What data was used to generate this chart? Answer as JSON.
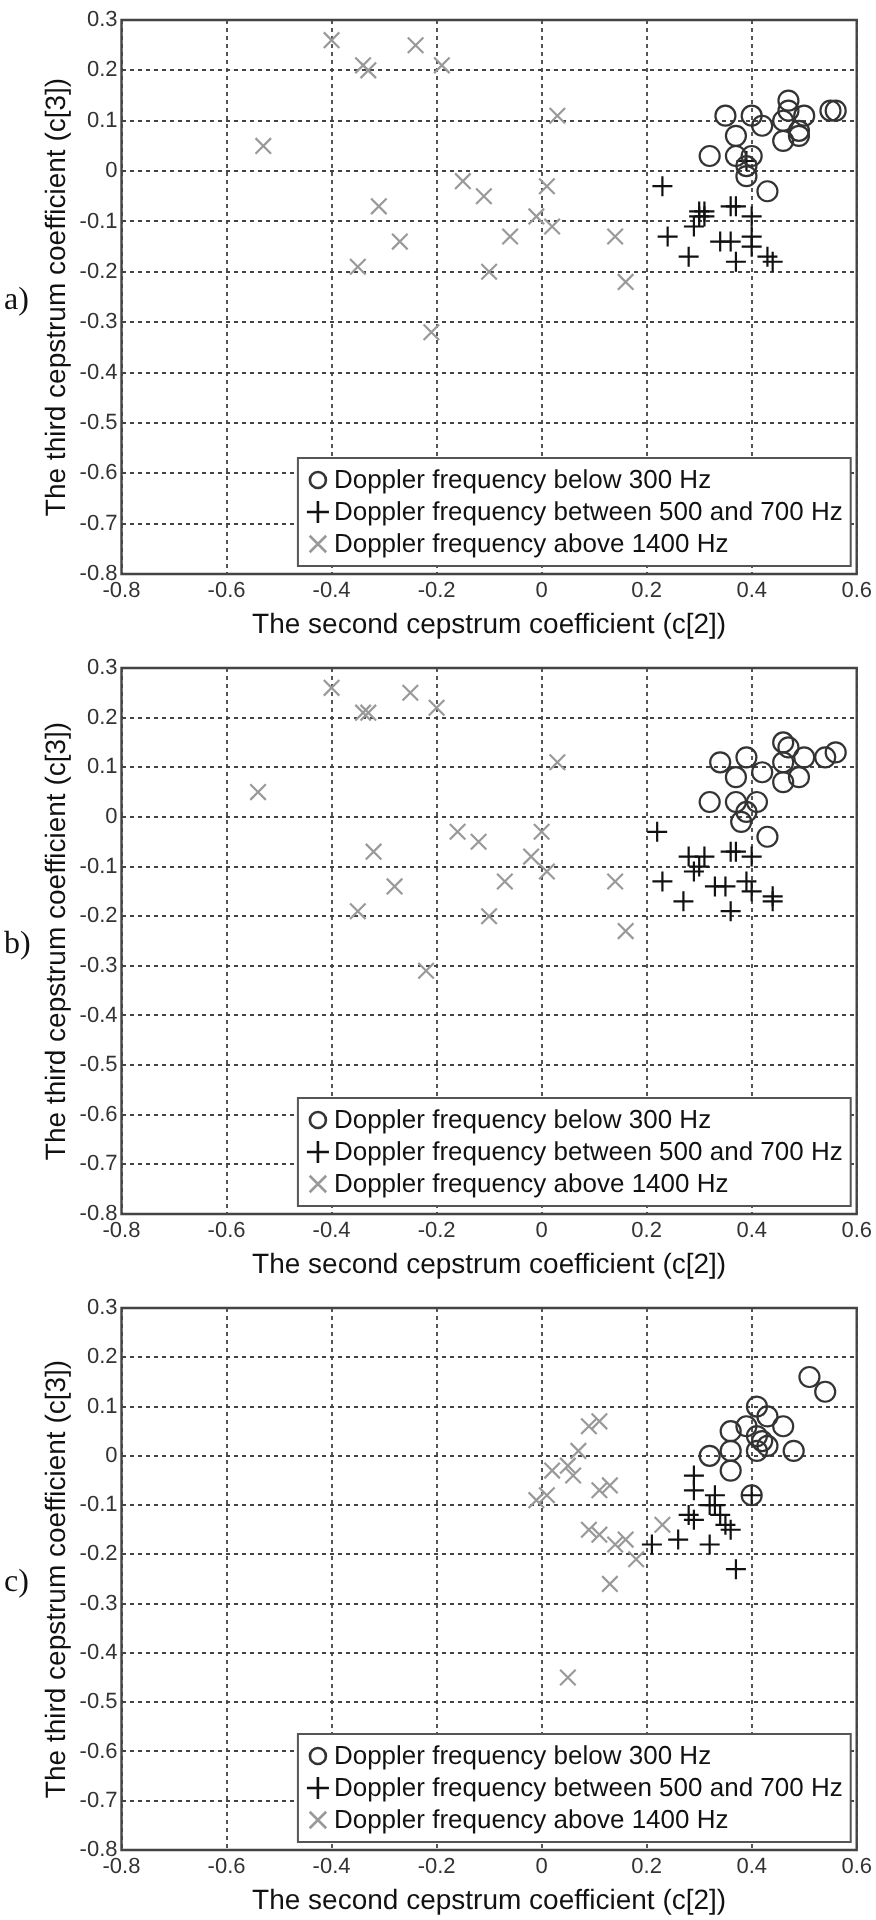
{
  "chart_data": [
    {
      "type": "scatter",
      "annotations": [
        "a)"
      ],
      "xlabel": "The second cepstrum coefficient (c[2])",
      "ylabel": "The third cepstrum coefficient (c[3])",
      "xlim": [
        -0.8,
        0.6
      ],
      "ylim": [
        -0.8,
        0.3
      ],
      "xticks": [
        -0.8,
        -0.6,
        -0.4,
        -0.2,
        0,
        0.2,
        0.4,
        0.6
      ],
      "yticks": [
        -0.8,
        -0.7,
        -0.6,
        -0.5,
        -0.4,
        -0.3,
        -0.2,
        -0.1,
        0,
        0.1,
        0.2,
        0.3
      ],
      "grid": true,
      "legend": "bottom right",
      "series": [
        {
          "name": "Doppler frequency below 300 Hz",
          "color": "#333333",
          "marker": "circle",
          "x": [
            0.35,
            0.4,
            0.37,
            0.42,
            0.47,
            0.47,
            0.5,
            0.46,
            0.46,
            0.49,
            0.49,
            0.55,
            0.56,
            0.32,
            0.37,
            0.4,
            0.39,
            0.39,
            0.43
          ],
          "values": [
            0.11,
            0.11,
            0.07,
            0.09,
            0.14,
            0.12,
            0.11,
            0.1,
            0.06,
            0.08,
            0.07,
            0.12,
            0.12,
            0.03,
            0.03,
            0.03,
            0.01,
            -0.01,
            -0.04
          ]
        },
        {
          "name": "Doppler frequency between 500 and 700 Hz",
          "color": "#111111",
          "marker": "cross",
          "x": [
            0.23,
            0.3,
            0.31,
            0.3,
            0.29,
            0.31,
            0.36,
            0.37,
            0.4,
            0.24,
            0.28,
            0.34,
            0.36,
            0.4,
            0.4,
            0.37,
            0.43,
            0.44,
            0.39
          ],
          "values": [
            -0.03,
            -0.08,
            -0.08,
            -0.09,
            -0.11,
            -0.09,
            -0.07,
            -0.07,
            -0.09,
            -0.13,
            -0.17,
            -0.14,
            -0.14,
            -0.13,
            -0.15,
            -0.18,
            -0.17,
            -0.18,
            0.02
          ]
        },
        {
          "name": "Doppler frequency above 1400 Hz",
          "color": "#999999",
          "marker": "x",
          "x": [
            -0.4,
            -0.34,
            -0.33,
            -0.24,
            -0.19,
            -0.53,
            0.03,
            -0.15,
            -0.11,
            0.01,
            -0.31,
            -0.27,
            -0.35,
            -0.06,
            -0.1,
            -0.01,
            0.02,
            -0.21,
            0.14,
            0.16
          ],
          "values": [
            0.26,
            0.21,
            0.2,
            0.25,
            0.21,
            0.05,
            0.11,
            -0.02,
            -0.05,
            -0.03,
            -0.07,
            -0.14,
            -0.19,
            -0.13,
            -0.2,
            -0.09,
            -0.11,
            -0.32,
            -0.13,
            -0.22
          ]
        }
      ]
    },
    {
      "type": "scatter",
      "annotations": [
        "b)"
      ],
      "xlabel": "The second cepstrum coefficient (c[2])",
      "ylabel": "The third cepstrum coefficient (c[3])",
      "xlim": [
        -0.8,
        0.6
      ],
      "ylim": [
        -0.8,
        0.3
      ],
      "xticks": [
        -0.8,
        -0.6,
        -0.4,
        -0.2,
        0,
        0.2,
        0.4,
        0.6
      ],
      "yticks": [
        -0.8,
        -0.7,
        -0.6,
        -0.5,
        -0.4,
        -0.3,
        -0.2,
        -0.1,
        0,
        0.1,
        0.2,
        0.3
      ],
      "grid": true,
      "legend": "bottom right",
      "series": [
        {
          "name": "Doppler frequency below 300 Hz",
          "color": "#333333",
          "marker": "circle",
          "x": [
            0.34,
            0.39,
            0.37,
            0.42,
            0.46,
            0.47,
            0.5,
            0.46,
            0.46,
            0.49,
            0.54,
            0.56,
            0.32,
            0.37,
            0.41,
            0.39,
            0.38,
            0.43
          ],
          "values": [
            0.11,
            0.12,
            0.08,
            0.09,
            0.15,
            0.14,
            0.12,
            0.11,
            0.07,
            0.08,
            0.12,
            0.13,
            0.03,
            0.03,
            0.03,
            0.01,
            -0.01,
            -0.04
          ]
        },
        {
          "name": "Doppler frequency between 500 and 700 Hz",
          "color": "#111111",
          "marker": "cross",
          "x": [
            0.22,
            0.28,
            0.31,
            0.3,
            0.29,
            0.36,
            0.37,
            0.4,
            0.23,
            0.27,
            0.33,
            0.35,
            0.39,
            0.4,
            0.36,
            0.44,
            0.44
          ],
          "values": [
            -0.03,
            -0.08,
            -0.08,
            -0.1,
            -0.11,
            -0.07,
            -0.07,
            -0.08,
            -0.13,
            -0.17,
            -0.14,
            -0.14,
            -0.13,
            -0.15,
            -0.19,
            -0.16,
            -0.17
          ]
        },
        {
          "name": "Doppler frequency above 1400 Hz",
          "color": "#999999",
          "marker": "x",
          "x": [
            -0.4,
            -0.34,
            -0.33,
            -0.25,
            -0.2,
            -0.54,
            0.03,
            -0.16,
            -0.12,
            0.0,
            -0.32,
            -0.28,
            -0.35,
            -0.07,
            -0.1,
            -0.02,
            0.01,
            -0.22,
            0.14,
            0.16
          ],
          "values": [
            0.26,
            0.21,
            0.21,
            0.25,
            0.22,
            0.05,
            0.11,
            -0.03,
            -0.05,
            -0.03,
            -0.07,
            -0.14,
            -0.19,
            -0.13,
            -0.2,
            -0.08,
            -0.11,
            -0.31,
            -0.13,
            -0.23
          ]
        }
      ]
    },
    {
      "type": "scatter",
      "annotations": [
        "c)"
      ],
      "xlabel": "The second cepstrum coefficient (c[2])",
      "ylabel": "The third cepstrum coefficient (c[3])",
      "xlim": [
        -0.8,
        0.6
      ],
      "ylim": [
        -0.8,
        0.3
      ],
      "xticks": [
        -0.8,
        -0.6,
        -0.4,
        -0.2,
        0,
        0.2,
        0.4,
        0.6
      ],
      "yticks": [
        -0.8,
        -0.7,
        -0.6,
        -0.5,
        -0.4,
        -0.3,
        -0.2,
        -0.1,
        0,
        0.1,
        0.2,
        0.3
      ],
      "grid": true,
      "legend": "bottom right",
      "series": [
        {
          "name": "Doppler frequency below 300 Hz",
          "color": "#333333",
          "marker": "circle",
          "x": [
            0.51,
            0.54,
            0.41,
            0.39,
            0.36,
            0.43,
            0.46,
            0.41,
            0.42,
            0.43,
            0.41,
            0.36,
            0.32,
            0.36,
            0.48,
            0.4
          ],
          "values": [
            0.16,
            0.13,
            0.1,
            0.06,
            0.05,
            0.08,
            0.06,
            0.04,
            0.03,
            0.02,
            0.01,
            0.01,
            0.0,
            -0.03,
            0.01,
            -0.08
          ]
        },
        {
          "name": "Doppler frequency between 500 and 700 Hz",
          "color": "#111111",
          "marker": "cross",
          "x": [
            0.29,
            0.29,
            0.33,
            0.33,
            0.32,
            0.28,
            0.29,
            0.34,
            0.35,
            0.36,
            0.21,
            0.26,
            0.32,
            0.37,
            0.4
          ],
          "values": [
            -0.04,
            -0.07,
            -0.08,
            -0.1,
            -0.1,
            -0.12,
            -0.13,
            -0.12,
            -0.14,
            -0.15,
            -0.18,
            -0.17,
            -0.18,
            -0.23,
            -0.08
          ]
        },
        {
          "name": "Doppler frequency above 1400 Hz",
          "color": "#999999",
          "marker": "x",
          "x": [
            0.09,
            0.11,
            0.07,
            0.05,
            0.02,
            0.06,
            0.01,
            -0.01,
            0.11,
            0.13,
            0.09,
            0.11,
            0.14,
            0.16,
            0.18,
            0.23,
            0.13,
            0.05
          ],
          "values": [
            0.06,
            0.07,
            0.01,
            -0.02,
            -0.03,
            -0.04,
            -0.08,
            -0.09,
            -0.07,
            -0.06,
            -0.15,
            -0.16,
            -0.18,
            -0.17,
            -0.21,
            -0.14,
            -0.26,
            -0.45
          ]
        }
      ]
    }
  ]
}
